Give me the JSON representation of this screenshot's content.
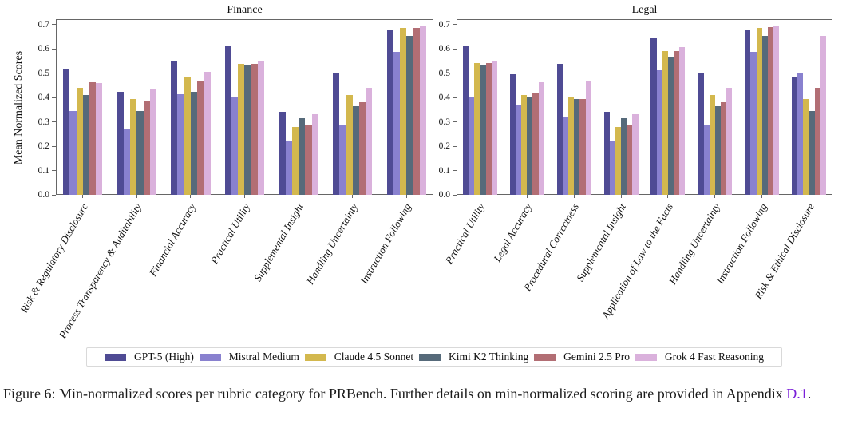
{
  "caption": {
    "prefix": "Figure 6: Min-normalized scores per rubric category for PRBench. Further details on min-normalized scoring are provided in Appendix ",
    "link": "D.1",
    "suffix": "."
  },
  "legend_position": "bottom",
  "chart_data": [
    {
      "type": "bar",
      "title": "Finance",
      "ylabel": "Mean Normalized Scores",
      "ylim": [
        0.0,
        0.7
      ],
      "yticks": [
        0.0,
        0.1,
        0.2,
        0.3,
        0.4,
        0.5,
        0.6,
        0.7
      ],
      "grid": false,
      "categories": [
        "Risk & Regulatory Disclosure",
        "Process Transparency & Auditability",
        "Financial Accuracy",
        "Practical Utility",
        "Supplemental Insight",
        "Handling Uncertainty",
        "Instruction Following"
      ],
      "series": [
        {
          "name": "GPT-5 (High)",
          "color": "#4f4b94",
          "values": [
            0.515,
            0.425,
            0.552,
            0.616,
            0.342,
            0.503,
            0.676
          ]
        },
        {
          "name": "Mistral Medium",
          "color": "#8981cf",
          "values": [
            0.346,
            0.268,
            0.413,
            0.4,
            0.222,
            0.285,
            0.587
          ]
        },
        {
          "name": "Claude 4.5 Sonnet",
          "color": "#d3b84e",
          "values": [
            0.441,
            0.394,
            0.488,
            0.54,
            0.281,
            0.412,
            0.686
          ]
        },
        {
          "name": "Kimi K2 Thinking",
          "color": "#566a7a",
          "values": [
            0.41,
            0.346,
            0.424,
            0.533,
            0.315,
            0.366,
            0.655
          ]
        },
        {
          "name": "Gemini 2.5 Pro",
          "color": "#b26e74",
          "values": [
            0.462,
            0.383,
            0.467,
            0.54,
            0.288,
            0.381,
            0.688
          ]
        },
        {
          "name": "Grok 4 Fast Reasoning",
          "color": "#dab1dc",
          "values": [
            0.461,
            0.437,
            0.507,
            0.549,
            0.333,
            0.44,
            0.695
          ]
        }
      ]
    },
    {
      "type": "bar",
      "title": "Legal",
      "ylabel": "",
      "ylim": [
        0.0,
        0.7
      ],
      "yticks": [
        0.0,
        0.1,
        0.2,
        0.3,
        0.4,
        0.5,
        0.6,
        0.7
      ],
      "grid": false,
      "categories": [
        "Practical Utility",
        "Legal Accuracy",
        "Procedural Correctness",
        "Supplemental Insight",
        "Application of Law to the Facts",
        "Handling Uncertainty",
        "Instruction Following",
        "Risk & Ethical Disclosure"
      ],
      "series": [
        {
          "name": "GPT-5 (High)",
          "color": "#4f4b94",
          "values": [
            0.616,
            0.495,
            0.538,
            0.342,
            0.645,
            0.503,
            0.676,
            0.485
          ]
        },
        {
          "name": "Mistral Medium",
          "color": "#8981cf",
          "values": [
            0.4,
            0.373,
            0.323,
            0.222,
            0.513,
            0.285,
            0.587,
            0.503
          ]
        },
        {
          "name": "Claude 4.5 Sonnet",
          "color": "#d3b84e",
          "values": [
            0.542,
            0.41,
            0.405,
            0.281,
            0.59,
            0.412,
            0.686,
            0.393
          ]
        },
        {
          "name": "Kimi K2 Thinking",
          "color": "#566a7a",
          "values": [
            0.532,
            0.403,
            0.393,
            0.315,
            0.568,
            0.366,
            0.655,
            0.346
          ]
        },
        {
          "name": "Gemini 2.5 Pro",
          "color": "#b26e74",
          "values": [
            0.542,
            0.419,
            0.393,
            0.288,
            0.593,
            0.381,
            0.69,
            0.44
          ]
        },
        {
          "name": "Grok 4 Fast Reasoning",
          "color": "#dab1dc",
          "values": [
            0.55,
            0.465,
            0.466,
            0.333,
            0.607,
            0.44,
            0.697,
            0.654
          ]
        }
      ]
    }
  ]
}
